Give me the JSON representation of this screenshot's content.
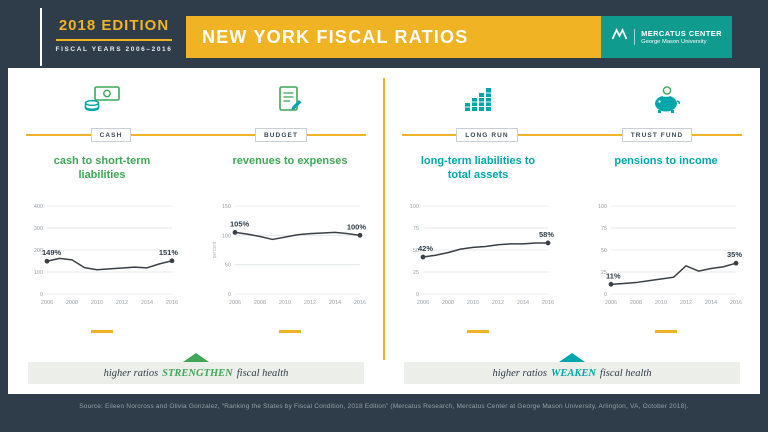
{
  "header": {
    "edition": "2018 EDITION",
    "fiscal_years": "FISCAL YEARS 2006–2016",
    "title": "NEW YORK FISCAL RATIOS",
    "logo_name": "MERCATUS CENTER",
    "logo_sub": "George Mason University"
  },
  "colors": {
    "navy": "#2f3d4a",
    "yellow": "#f0b323",
    "green": "#3fa757",
    "teal": "#00a7aa",
    "logo_teal": "#0f9b8e"
  },
  "chart_data": [
    {
      "type": "line",
      "panel_label": "CASH",
      "icon": "cash-coins-icon",
      "title": "cash to short-term liabilities",
      "x": [
        2006,
        2007,
        2008,
        2009,
        2010,
        2011,
        2012,
        2013,
        2014,
        2015,
        2016
      ],
      "values": [
        149,
        162,
        155,
        120,
        110,
        114,
        118,
        122,
        119,
        137,
        151
      ],
      "start_label": "149%",
      "end_label": "151%",
      "ylim": [
        0,
        400
      ],
      "yticks": [
        0,
        100,
        200,
        300,
        400
      ],
      "xticks": [
        2006,
        2008,
        2010,
        2012,
        2014,
        2016
      ],
      "ylabel": ""
    },
    {
      "type": "line",
      "panel_label": "BUDGET",
      "icon": "budget-clipboard-icon",
      "title": "revenues to expenses",
      "x": [
        2006,
        2007,
        2008,
        2009,
        2010,
        2011,
        2012,
        2013,
        2014,
        2015,
        2016
      ],
      "values": [
        105,
        102,
        98,
        93,
        97,
        101,
        103,
        104,
        105,
        103,
        100
      ],
      "start_label": "105%",
      "end_label": "100%",
      "ylim": [
        0,
        150
      ],
      "yticks": [
        0,
        50,
        100,
        150
      ],
      "xticks": [
        2006,
        2008,
        2010,
        2012,
        2014,
        2016
      ],
      "ylabel": "percent"
    },
    {
      "type": "line",
      "panel_label": "LONG RUN",
      "icon": "long-run-bars-icon",
      "title": "long-term liabilities to total assets",
      "x": [
        2006,
        2007,
        2008,
        2009,
        2010,
        2011,
        2012,
        2013,
        2014,
        2015,
        2016
      ],
      "values": [
        42,
        44,
        47,
        51,
        53,
        54,
        56,
        57,
        57,
        58,
        58
      ],
      "start_label": "42%",
      "end_label": "58%",
      "ylim": [
        0,
        100
      ],
      "yticks": [
        0,
        25,
        50,
        75,
        100
      ],
      "xticks": [
        2006,
        2008,
        2010,
        2012,
        2014,
        2016
      ],
      "ylabel": ""
    },
    {
      "type": "line",
      "panel_label": "TRUST FUND",
      "icon": "piggy-bank-icon",
      "title": "pensions to income",
      "x": [
        2006,
        2007,
        2008,
        2009,
        2010,
        2011,
        2012,
        2013,
        2014,
        2015,
        2016
      ],
      "values": [
        11,
        12,
        13,
        15,
        17,
        19,
        32,
        26,
        29,
        31,
        35
      ],
      "start_label": "11%",
      "end_label": "35%",
      "ylim": [
        0,
        100
      ],
      "yticks": [
        0,
        25,
        50,
        75,
        100
      ],
      "xticks": [
        2006,
        2008,
        2010,
        2012,
        2014,
        2016
      ],
      "ylabel": ""
    }
  ],
  "footer": {
    "left": {
      "prefix": "higher ratios",
      "emphasis": "STRENGTHEN",
      "suffix": "fiscal health"
    },
    "right": {
      "prefix": "higher ratios",
      "emphasis": "WEAKEN",
      "suffix": "fiscal health"
    }
  },
  "source": "Source: Eileen Norcross and Olivia Gonzalez, “Ranking the States by Fiscal Condition, 2018 Edition” (Mercatus Research, Mercatus Center at George Mason University, Arlington, VA, October 2018)."
}
